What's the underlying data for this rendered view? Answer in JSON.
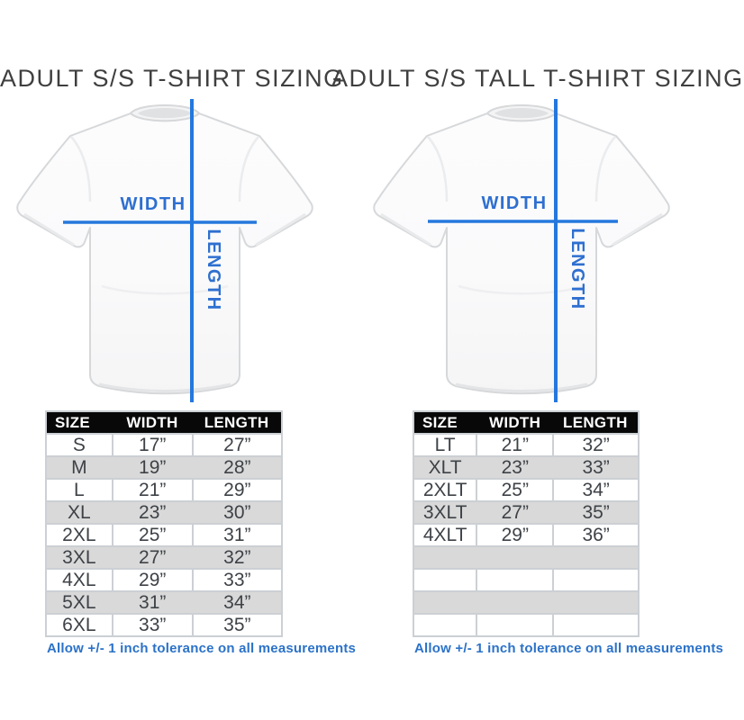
{
  "colors": {
    "accent_blue": "#2478dd",
    "label_blue": "#2e6fd0",
    "footnote_blue": "#2b72c8",
    "header_bg": "#080808",
    "row_alt": "#d9d9d9"
  },
  "panels": [
    {
      "title": "ADULT S/S T-SHIRT SIZING",
      "diagram": {
        "width_label": "WIDTH",
        "length_label": "LENGTH"
      },
      "table": {
        "headers": [
          "SIZE",
          "WIDTH",
          "LENGTH"
        ],
        "rows": [
          [
            "S",
            "17”",
            "27”"
          ],
          [
            "M",
            "19”",
            "28”"
          ],
          [
            "L",
            "21”",
            "29”"
          ],
          [
            "XL",
            "23”",
            "30”"
          ],
          [
            "2XL",
            "25”",
            "31”"
          ],
          [
            "3XL",
            "27”",
            "32”"
          ],
          [
            "4XL",
            "29”",
            "33”"
          ],
          [
            "5XL",
            "31”",
            "34”"
          ],
          [
            "6XL",
            "33”",
            "35”"
          ]
        ],
        "footnote": "Allow +/- 1 inch tolerance on all measurements"
      }
    },
    {
      "title": "ADULT S/S TALL T-SHIRT SIZING",
      "diagram": {
        "width_label": "WIDTH",
        "length_label": "LENGTH"
      },
      "table": {
        "headers": [
          "SIZE",
          "WIDTH",
          "LENGTH"
        ],
        "rows": [
          [
            "LT",
            "21”",
            "32”"
          ],
          [
            "XLT",
            "23”",
            "33”"
          ],
          [
            "2XLT",
            "25”",
            "34”"
          ],
          [
            "3XLT",
            "27”",
            "35”"
          ],
          [
            "4XLT",
            "29”",
            "36”"
          ],
          [
            "",
            "",
            ""
          ],
          [
            "",
            "",
            ""
          ],
          [
            "",
            "",
            ""
          ],
          [
            "",
            "",
            ""
          ]
        ],
        "footnote": "Allow +/- 1 inch tolerance on all measurements"
      }
    }
  ]
}
